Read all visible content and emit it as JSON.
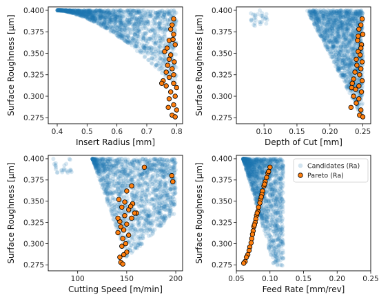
{
  "colors": {
    "candidates": "#1f77b4",
    "pareto_fill": "#ff7f0e",
    "pareto_edge": "#000000"
  },
  "chart_data": [
    {
      "id": "insert-radius",
      "type": "scatter",
      "xlabel": "Insert Radius [mm]",
      "ylabel": "Surface Roughness [µm]",
      "xlim": [
        0.37,
        0.82
      ],
      "ylim": [
        0.268,
        0.404
      ],
      "xticks": [
        0.4,
        0.5,
        0.6,
        0.7,
        0.8
      ],
      "xtick_labels": [
        "0.4",
        "0.5",
        "0.6",
        "0.7",
        "0.8"
      ],
      "yticks": [
        0.275,
        0.3,
        0.325,
        0.35,
        0.375,
        0.4
      ],
      "ytick_labels": [
        "0.275",
        "0.300",
        "0.325",
        "0.350",
        "0.375",
        "0.400"
      ],
      "pareto": [
        [
          0.79,
          0.39
        ],
        [
          0.785,
          0.383
        ],
        [
          0.78,
          0.378
        ],
        [
          0.79,
          0.372
        ],
        [
          0.775,
          0.365
        ],
        [
          0.795,
          0.36
        ],
        [
          0.76,
          0.352
        ],
        [
          0.78,
          0.348
        ],
        [
          0.775,
          0.343
        ],
        [
          0.792,
          0.34
        ],
        [
          0.77,
          0.336
        ],
        [
          0.785,
          0.332
        ],
        [
          0.765,
          0.328
        ],
        [
          0.79,
          0.325
        ],
        [
          0.775,
          0.322
        ],
        [
          0.755,
          0.318
        ],
        [
          0.79,
          0.315
        ],
        [
          0.765,
          0.312
        ],
        [
          0.8,
          0.31
        ],
        [
          0.78,
          0.305
        ],
        [
          0.795,
          0.3
        ],
        [
          0.775,
          0.297
        ],
        [
          0.79,
          0.29
        ],
        [
          0.772,
          0.287
        ],
        [
          0.8,
          0.284
        ],
        [
          0.785,
          0.278
        ],
        [
          0.795,
          0.276
        ],
        [
          0.75,
          0.315
        ],
        [
          0.768,
          0.356
        ],
        [
          0.788,
          0.366
        ]
      ]
    },
    {
      "id": "depth-of-cut",
      "type": "scatter",
      "xlabel": "Depth of Cut [mm]",
      "ylabel": "Surface Roughness [µm]",
      "xlim": [
        0.058,
        0.262
      ],
      "ylim": [
        0.268,
        0.404
      ],
      "xticks": [
        0.1,
        0.15,
        0.2,
        0.25
      ],
      "xtick_labels": [
        "0.10",
        "0.15",
        "0.20",
        "0.25"
      ],
      "yticks": [
        0.275,
        0.3,
        0.325,
        0.35,
        0.375,
        0.4
      ],
      "ytick_labels": [
        "0.275",
        "0.300",
        "0.325",
        "0.350",
        "0.375",
        "0.400"
      ],
      "pareto": [
        [
          0.249,
          0.39
        ],
        [
          0.247,
          0.383
        ],
        [
          0.244,
          0.378
        ],
        [
          0.25,
          0.372
        ],
        [
          0.242,
          0.365
        ],
        [
          0.248,
          0.36
        ],
        [
          0.243,
          0.352
        ],
        [
          0.246,
          0.348
        ],
        [
          0.24,
          0.343
        ],
        [
          0.249,
          0.34
        ],
        [
          0.241,
          0.336
        ],
        [
          0.247,
          0.332
        ],
        [
          0.238,
          0.328
        ],
        [
          0.245,
          0.325
        ],
        [
          0.236,
          0.32
        ],
        [
          0.249,
          0.318
        ],
        [
          0.234,
          0.315
        ],
        [
          0.244,
          0.312
        ],
        [
          0.239,
          0.308
        ],
        [
          0.248,
          0.305
        ],
        [
          0.236,
          0.3
        ],
        [
          0.244,
          0.297
        ],
        [
          0.24,
          0.292
        ],
        [
          0.232,
          0.287
        ],
        [
          0.247,
          0.284
        ],
        [
          0.245,
          0.278
        ],
        [
          0.25,
          0.276
        ],
        [
          0.233,
          0.31
        ],
        [
          0.247,
          0.356
        ],
        [
          0.243,
          0.37
        ]
      ]
    },
    {
      "id": "cutting-speed",
      "type": "scatter",
      "xlabel": "Cutting Speed [m/min]",
      "ylabel": "Surface Roughness [µm]",
      "xlim": [
        70,
        207
      ],
      "ylim": [
        0.268,
        0.404
      ],
      "xticks": [
        100,
        150,
        200
      ],
      "xtick_labels": [
        "100",
        "150",
        "200"
      ],
      "yticks": [
        0.275,
        0.3,
        0.325,
        0.35,
        0.375,
        0.4
      ],
      "ytick_labels": [
        "0.275",
        "0.300",
        "0.325",
        "0.350",
        "0.375",
        "0.400"
      ],
      "pareto": [
        [
          168,
          0.39
        ],
        [
          196,
          0.38
        ],
        [
          197,
          0.373
        ],
        [
          155,
          0.368
        ],
        [
          150,
          0.362
        ],
        [
          142,
          0.352
        ],
        [
          148,
          0.349
        ],
        [
          156,
          0.347
        ],
        [
          145,
          0.343
        ],
        [
          152,
          0.34
        ],
        [
          160,
          0.336
        ],
        [
          148,
          0.333
        ],
        [
          155,
          0.33
        ],
        [
          143,
          0.326
        ],
        [
          150,
          0.323
        ],
        [
          144,
          0.32
        ],
        [
          147,
          0.316
        ],
        [
          141,
          0.313
        ],
        [
          152,
          0.31
        ],
        [
          146,
          0.306
        ],
        [
          149,
          0.3
        ],
        [
          145,
          0.297
        ],
        [
          150,
          0.29
        ],
        [
          147,
          0.287
        ],
        [
          143,
          0.284
        ],
        [
          144,
          0.278
        ],
        [
          146,
          0.276
        ],
        [
          158,
          0.336
        ],
        [
          141,
          0.33
        ],
        [
          154,
          0.344
        ]
      ]
    },
    {
      "id": "feed-rate",
      "type": "scatter",
      "xlabel": "Feed Rate [mm/rev]",
      "ylabel": "Surface Roughness [µm]",
      "xlim": [
        0.05,
        0.25
      ],
      "ylim": [
        0.268,
        0.404
      ],
      "xticks": [
        0.05,
        0.1,
        0.15,
        0.2,
        0.25
      ],
      "xtick_labels": [
        "0.05",
        "0.10",
        "0.15",
        "0.20",
        "0.25"
      ],
      "yticks": [
        0.275,
        0.3,
        0.325,
        0.35,
        0.375,
        0.4
      ],
      "ytick_labels": [
        "0.275",
        "0.300",
        "0.325",
        "0.350",
        "0.375",
        "0.400"
      ],
      "legend": {
        "position": "top-right",
        "entries": [
          "Candidates (Ra)",
          "Pareto (Ra)"
        ]
      },
      "pareto": [
        [
          0.1,
          0.39
        ],
        [
          0.097,
          0.383
        ],
        [
          0.095,
          0.378
        ],
        [
          0.093,
          0.373
        ],
        [
          0.091,
          0.368
        ],
        [
          0.089,
          0.362
        ],
        [
          0.088,
          0.358
        ],
        [
          0.086,
          0.352
        ],
        [
          0.085,
          0.348
        ],
        [
          0.083,
          0.343
        ],
        [
          0.082,
          0.338
        ],
        [
          0.08,
          0.333
        ],
        [
          0.079,
          0.329
        ],
        [
          0.078,
          0.325
        ],
        [
          0.076,
          0.32
        ],
        [
          0.075,
          0.315
        ],
        [
          0.074,
          0.311
        ],
        [
          0.073,
          0.306
        ],
        [
          0.072,
          0.301
        ],
        [
          0.07,
          0.296
        ],
        [
          0.069,
          0.292
        ],
        [
          0.067,
          0.287
        ],
        [
          0.065,
          0.284
        ],
        [
          0.063,
          0.279
        ],
        [
          0.061,
          0.277
        ],
        [
          0.077,
          0.322
        ],
        [
          0.081,
          0.336
        ],
        [
          0.087,
          0.355
        ],
        [
          0.092,
          0.37
        ],
        [
          0.098,
          0.385
        ]
      ]
    }
  ]
}
